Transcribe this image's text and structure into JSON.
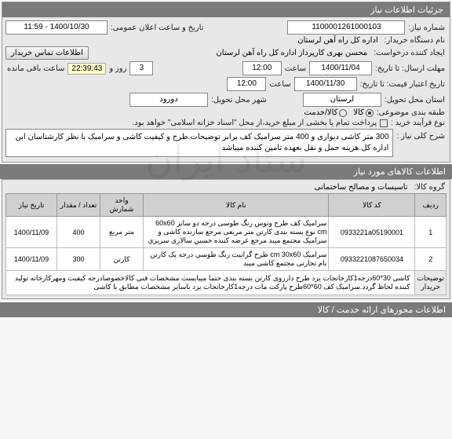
{
  "panel_title": "جزئیات اطلاعات نیاز",
  "fields": {
    "need_no_label": "شماره نیاز:",
    "need_no": "1100001261000103",
    "announce_label": "تاریخ و ساعت اعلان عمومی:",
    "announce_value": "1400/10/30 - 11:59",
    "buyer_org_label": "نام دستگاه خریدار:",
    "buyer_org": "اداره کل راه آهن لرستان",
    "creator_label": "ایجاد کننده درخواست:",
    "creator": "محسن بهرى کارپرداز اداره کل راه آهن لرستان",
    "contact_btn": "اطلاعات تماس خریدار",
    "send_deadline_label": "مهلت ارسال: تا تاریخ:",
    "send_date": "1400/11/04",
    "time_label": "ساعت",
    "send_time": "12:00",
    "days_remaining": "3",
    "days_lbl": "روز و",
    "countdown": "22:39:43",
    "remain_lbl": "ساعت باقی مانده",
    "validity_label": "تاریخ اعتبار قیمت: تا تاریخ:",
    "validity_date": "1400/11/30",
    "validity_time": "12:00",
    "province_label": "استان محل تحویل:",
    "province": "لرستان",
    "city_label": "شهر محل تحویل:",
    "city": "دورود",
    "subject_type_label": "طبقه بندی موضوعی:",
    "goods": "کالا",
    "service": "کالا/خدمت",
    "purchase_type_label": "نوع فرآیند خرید :",
    "purchase_note": "پرداخت تمام یا بخشی از مبلغ خرید،از محل \"اسناد خزانه اسلامی\" خواهد بود.",
    "desc_label": "شرح کلی نیاز :",
    "desc": "300 متر کاشی دیواری و 400 متر سرامیک کف برابر توضیحات.طرح و کیفیت کاشی و سرامیک با نظر کارشناسان این اداره کل.هزینه حمل و نقل بعهده تامین کننده میباشد"
  },
  "items_title": "اطلاعات کالاهای مورد نیاز",
  "group_label": "گروه کالا:",
  "group_value": "تاسیسات و مصالح ساختمانی",
  "table": {
    "headers": [
      "ردیف",
      "کد کالا",
      "نام کالا",
      "واحد شمارش",
      "تعداد / مقدار",
      "تاریخ نیاز"
    ],
    "rows": [
      [
        "1",
        "0933221a05190001",
        "سرامیک کف طرح ونوس رنگ طوسی درجه دو سایز 60x60 cm نوع بسته بندی کارتن متر مربعی مرجع سازنده کاشی و سرامیک مجتمع میبد مرجع عرضه کننده حسین سالاری سریزی",
        "متر مربع",
        "400",
        "1400/11/09"
      ],
      [
        "2",
        "0933221087650034",
        "سرامیک cm 30x60 طرح گرانیت رنگ طوسی درجه یک کارتن نام تجارتی مجتمع کاشی میبد",
        "کارتن",
        "300",
        "1400/11/09"
      ]
    ],
    "note_label": "توضیحات خریدار",
    "note": "کاشی 30*60درجه1کارخانجات یزد طرح دارروی کارتن بسته بندی حتما میبایست مشخصات فنی کالاخصوصادرجه کیفیت ومهرکارخانه تولید کننده لحاظ گردد.سرامیک کف 60*60طرح پارکت مات درجه1کارخانجات یزد باسایر مشخصات مطابق با کاشی"
  },
  "footer_title": "اطلاعات مجوزهای ارائه خدمت / کالا"
}
